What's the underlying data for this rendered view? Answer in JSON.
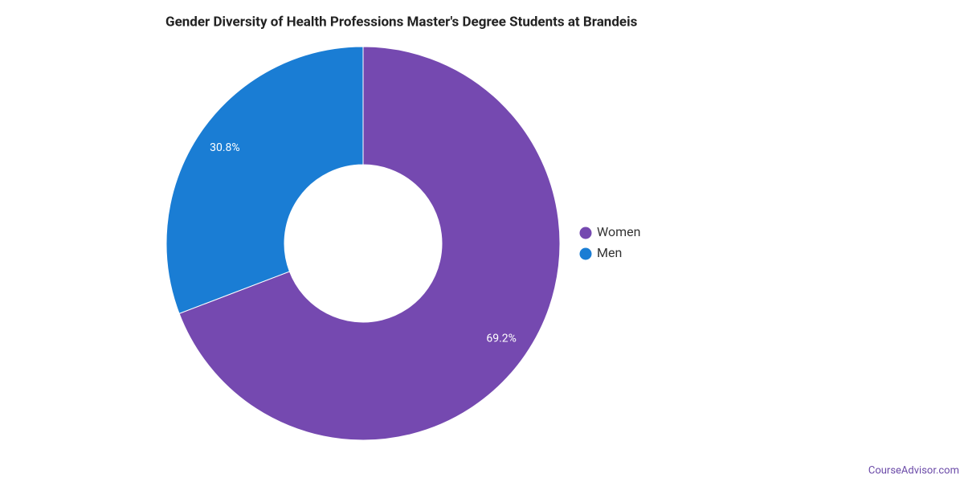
{
  "chart_data": {
    "type": "donut",
    "title": "Gender Diversity of Health Professions Master's Degree Students at Brandeis",
    "categories": [
      "Women",
      "Men"
    ],
    "values": [
      69.2,
      30.8
    ],
    "value_labels": [
      "69.2%",
      "30.8%"
    ],
    "colors": [
      "#7549b0",
      "#1a7dd4"
    ],
    "legend": "right",
    "credit": "CourseAdvisor.com"
  }
}
